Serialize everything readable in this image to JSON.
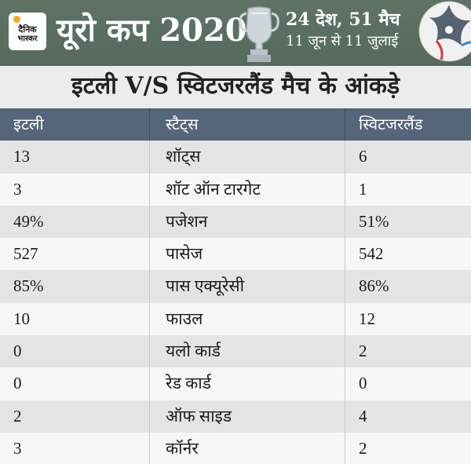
{
  "banner": {
    "logo_line1": "दैनिक",
    "logo_line2": "भास्कर",
    "title": "यूरो कप 2020",
    "info_line1": "24 देश, 51 मैच",
    "info_line2": "11 जून से 11 जुलाई"
  },
  "subtitle": "इटली V/S स्विटजरलैंड मैच के आंकड़े",
  "table": {
    "headers": [
      "इटली",
      "स्टैट्स",
      "स्विटजरलैंड"
    ],
    "rows": [
      [
        "13",
        "शॉट्स",
        "6"
      ],
      [
        "3",
        "शॉट ऑन टारगेट",
        "1"
      ],
      [
        "49%",
        "पजेशन",
        "51%"
      ],
      [
        "527",
        "पासेज",
        "542"
      ],
      [
        "85%",
        "पास एक्यूरेसी",
        "86%"
      ],
      [
        "10",
        "फाउल",
        "12"
      ],
      [
        "0",
        "यलो कार्ड",
        "2"
      ],
      [
        "0",
        "रेड कार्ड",
        "0"
      ],
      [
        "2",
        "ऑफ साइड",
        "4"
      ],
      [
        "3",
        "कॉर्नर",
        "2"
      ]
    ]
  },
  "icons": {
    "logo": "dainik-bhaskar-logo",
    "trophy": "euro-trophy-icon",
    "ball": "football-icon"
  },
  "colors": {
    "banner_bg": "#5b6f62",
    "header_bg": "#55667a",
    "logo_dot": "#f5a623"
  }
}
